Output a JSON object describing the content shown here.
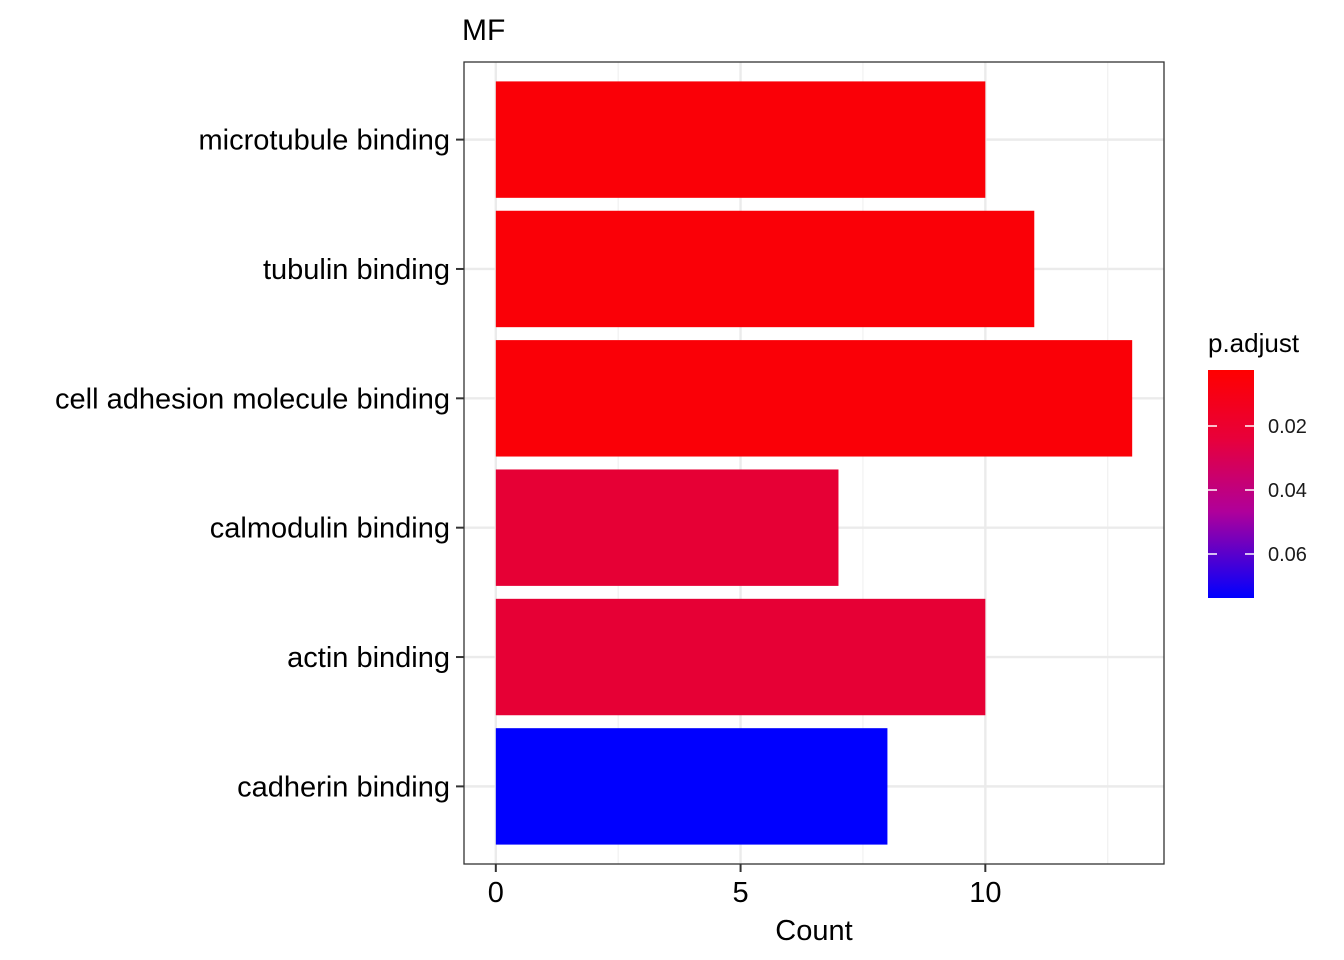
{
  "chart_data": {
    "type": "bar",
    "orientation": "horizontal",
    "title": "MF",
    "xlabel": "Count",
    "ylabel": "",
    "xlim": [
      -0.65,
      13.65
    ],
    "xticks": [
      0,
      5,
      10
    ],
    "categories": [
      "microtubule binding",
      "tubulin binding",
      "cell adhesion molecule binding",
      "calmodulin binding",
      "actin binding",
      "cadherin binding"
    ],
    "values": [
      10,
      11,
      13,
      7,
      10,
      8
    ],
    "bar_colors": [
      "#FA0007",
      "#FA0007",
      "#FA0007",
      "#E60035",
      "#E60035",
      "#0000FF"
    ],
    "grid": true,
    "legend": {
      "title": "p.adjust",
      "placement": "right",
      "ticks": [
        "0.02",
        "0.04",
        "0.06"
      ],
      "colors": [
        "#FF0000",
        "#8A00A0",
        "#0000FF"
      ]
    }
  }
}
